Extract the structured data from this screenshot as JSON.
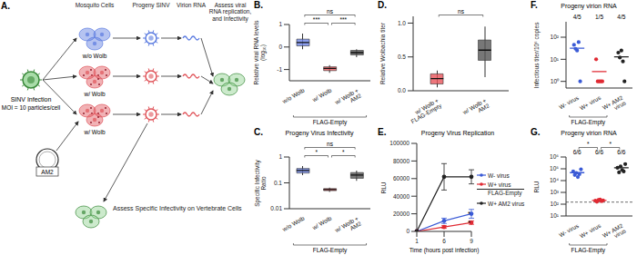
{
  "diagram": {
    "label": "A.",
    "infection": {
      "title": "SINV Infection",
      "subtitle": "MOI = 10 particles/cell"
    },
    "headers": [
      "Mosquito Cells",
      "Progeny SINV",
      "Virion RNA",
      "Assess viral RNA replication, and Infectivity"
    ],
    "cells": [
      {
        "label": "w/o Wolb",
        "color": "#5b7be0"
      },
      {
        "label": "w/ Wolb",
        "color": "#e0555b"
      },
      {
        "label": "w/ Wolb",
        "color": "#e0555b"
      }
    ],
    "plasmid": "AM2",
    "footer": "Assess Specific Infectivity on Vertebrate Cells"
  },
  "chart_data": [
    {
      "label": "B.",
      "type": "box",
      "ylabel": "Relative viral RNA levels (log₁₀)",
      "categories": [
        "w/o Wolb",
        "w/ Wolb",
        "w/ Wolb + AM2"
      ],
      "boxes": [
        {
          "min": -0.1,
          "q1": 0.05,
          "median": 0.2,
          "q3": 0.35,
          "max": 0.6
        },
        {
          "min": -1.15,
          "q1": -1.05,
          "median": -0.95,
          "q3": -0.88,
          "max": -0.8
        },
        {
          "min": -0.45,
          "q1": -0.35,
          "median": -0.25,
          "q3": -0.15,
          "max": -0.1
        }
      ],
      "colors": [
        "#6f86e8",
        "#e8545a",
        "#555555"
      ],
      "ylim": [
        -1.5,
        1
      ],
      "yticks": [
        -1,
        0,
        1
      ],
      "annotations": [
        {
          "text": "ns",
          "from": 0,
          "to": 2
        },
        {
          "text": "***",
          "from": 0,
          "to": 1
        },
        {
          "text": "***",
          "from": 1,
          "to": 2
        }
      ],
      "group_label": {
        "text": "FLAG-Empty",
        "from": 0,
        "to": 2
      }
    },
    {
      "label": "C.",
      "type": "box",
      "title": "Progeny Virus Infectivity",
      "ylabel": "Specific Infectivity Ratio",
      "log": "y",
      "categories": [
        "w/o Wolb",
        "w/ Wolb",
        "w/ Wolb + AM2"
      ],
      "boxes": [
        {
          "min": 0.2,
          "q1": 0.24,
          "median": 0.3,
          "q3": 0.36,
          "max": 0.45
        },
        {
          "min": 0.045,
          "q1": 0.05,
          "median": 0.055,
          "q3": 0.06,
          "max": 0.065
        },
        {
          "min": 0.12,
          "q1": 0.15,
          "median": 0.2,
          "q3": 0.25,
          "max": 0.3
        }
      ],
      "colors": [
        "#6f86e8",
        "#e8545a",
        "#555555"
      ],
      "ylim": [
        0.01,
        1
      ],
      "yticks": [
        0.01,
        0.1,
        1
      ],
      "annotations": [
        {
          "text": "ns",
          "from": 0,
          "to": 2
        },
        {
          "text": "*",
          "from": 0,
          "to": 1
        },
        {
          "text": "*",
          "from": 1,
          "to": 2
        }
      ],
      "group_label": {
        "text": "FLAG-Empty",
        "from": 0,
        "to": 2
      }
    },
    {
      "label": "D.",
      "type": "box",
      "ylabel": "Relative Wolbachia titer",
      "categories": [
        "w/ Wolb + FLAG-Empty",
        "w/ Wolb + AM2"
      ],
      "boxes": [
        {
          "min": 0.05,
          "q1": 0.1,
          "median": 0.18,
          "q3": 0.25,
          "max": 0.3
        },
        {
          "min": 0.2,
          "q1": 0.45,
          "median": 0.6,
          "q3": 0.75,
          "max": 0.95
        }
      ],
      "colors": [
        "#e8545a",
        "#555555"
      ],
      "ylim": [
        0,
        1.1
      ],
      "yticks": [
        {
          "value": 0,
          "label": "0.0"
        },
        0.5,
        {
          "value": 1,
          "label": "1.0"
        }
      ],
      "annotations": [
        {
          "text": "ns",
          "from": 0,
          "to": 1
        }
      ]
    },
    {
      "label": "E.",
      "type": "line",
      "title": "Progeny Virus Replication",
      "xlabel": "Time (hours post infection)",
      "ylabel": "RLU",
      "categories": [
        "1",
        "6",
        "9"
      ],
      "series": [
        {
          "name": "W- virus",
          "color": "#3b5bd6",
          "values": [
            0,
            12000,
            20000
          ],
          "errors": [
            0,
            3000,
            5000
          ]
        },
        {
          "name": "W+ virus",
          "color": "#e02a33",
          "values": [
            0,
            5000,
            10000
          ],
          "errors": [
            0,
            1500,
            2000
          ]
        },
        {
          "name": "W+ AM2 virus",
          "color": "#222222",
          "values": [
            0,
            62000,
            62000
          ],
          "errors": [
            0,
            15000,
            8000
          ]
        }
      ],
      "ylim": [
        0,
        100000
      ],
      "yticks": [
        0,
        20000,
        40000,
        60000,
        80000,
        100000
      ],
      "legend": "right",
      "group_label": {
        "text": "FLAG-Empty",
        "from": 0,
        "to": 1
      },
      "annotations": [
        {
          "text": "*",
          "series": 0
        },
        {
          "text": "*",
          "series": 1
        }
      ]
    },
    {
      "label": "F.",
      "type": "scatter",
      "title": "Progeny virion RNA",
      "ylabel": "Infectious titer/10⁶ copies",
      "log": "y",
      "categories": [
        "W- virus",
        "W+ virus",
        "W+ AM2 virus"
      ],
      "points": [
        [
          45,
          30,
          25,
          60,
          1
        ],
        [
          10,
          1,
          1,
          1,
          1
        ],
        [
          20,
          12,
          25,
          8,
          1
        ]
      ],
      "means": [
        32,
        2.8,
        13
      ],
      "colors": [
        "#3b5bd6",
        "#e02a33",
        "#222222"
      ],
      "ylim": [
        0.5,
        500
      ],
      "yticks": [
        {
          "value": 1,
          "label": "10⁰"
        },
        {
          "value": 10,
          "label": "10¹"
        },
        {
          "value": 100,
          "label": "10²"
        }
      ],
      "annotations": [
        {
          "text": "4/5",
          "at": 0
        },
        {
          "text": "1/5",
          "at": 1
        },
        {
          "text": "4/5",
          "at": 2
        }
      ],
      "group_label": {
        "text": "FLAG-Empty",
        "from": 0,
        "to": 1
      }
    },
    {
      "label": "G.",
      "type": "scatter",
      "title": "Progeny virion RNA",
      "ylabel": "RLU",
      "log": "y",
      "categories": [
        "W- virus",
        "W+ virus",
        "W+ AM2 virus"
      ],
      "points": [
        [
          60000,
          30000,
          45000,
          20000,
          35000,
          90000
        ],
        [
          200,
          160,
          230,
          250,
          180,
          210
        ],
        [
          120000,
          50000,
          160000,
          80000,
          60000,
          250000
        ]
      ],
      "means": [
        47000,
        205,
        120000
      ],
      "colors": [
        "#3b5bd6",
        "#e02a33",
        "#222222"
      ],
      "threshold": 150,
      "ylim": [
        10,
        1000000
      ],
      "yticks": [
        {
          "value": 10,
          "label": "10¹"
        },
        {
          "value": 100,
          "label": "10²"
        },
        {
          "value": 1000,
          "label": "10³"
        },
        {
          "value": 10000,
          "label": "10⁴"
        },
        {
          "value": 100000,
          "label": "10⁵"
        },
        {
          "value": 1000000,
          "label": "10⁶"
        }
      ],
      "annotations": [
        {
          "text": "6/6",
          "at": 0
        },
        {
          "text": "6/6",
          "at": 1
        },
        {
          "text": "6/6",
          "at": 2
        },
        {
          "text": "*",
          "from": 0,
          "to": 1
        },
        {
          "text": "*",
          "from": 1,
          "to": 2
        }
      ],
      "group_label": {
        "text": "FLAG-Empty",
        "from": 0,
        "to": 1
      }
    }
  ]
}
